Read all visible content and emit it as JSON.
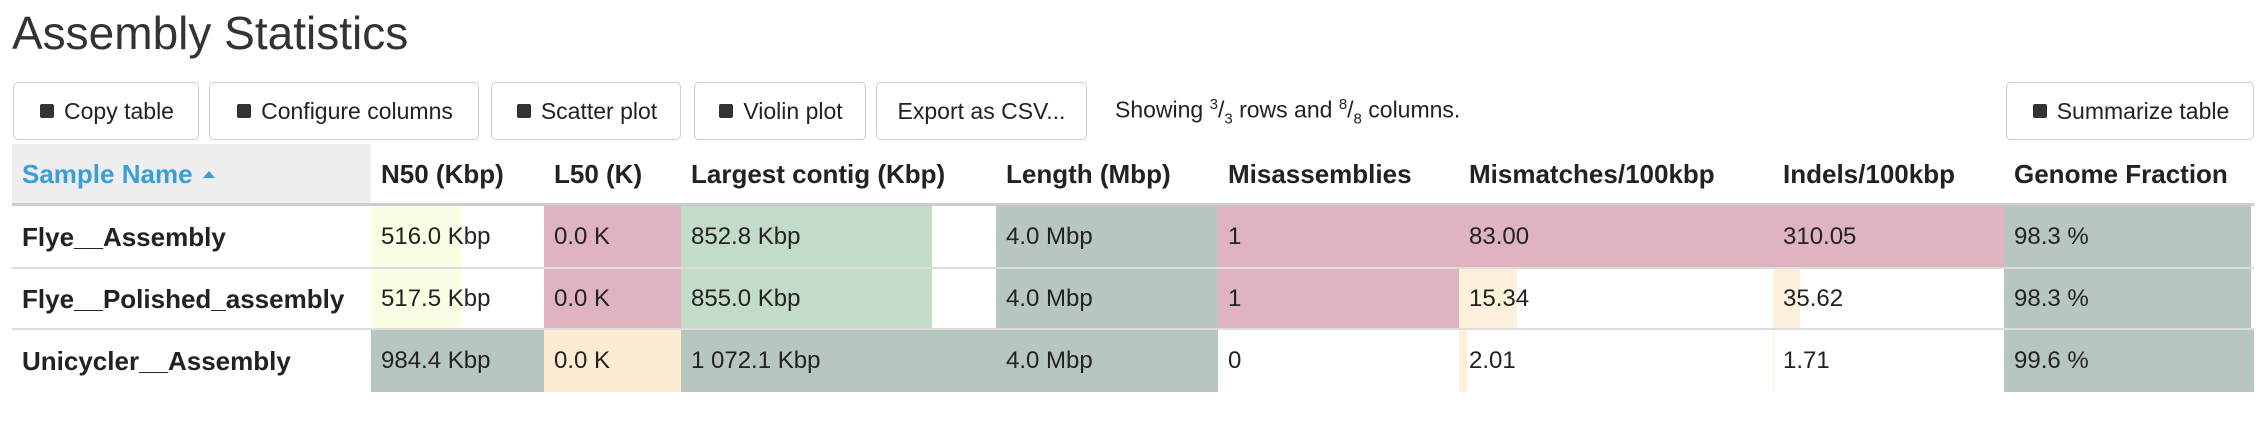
{
  "header": {
    "title": "Assembly Statistics"
  },
  "toolbar": {
    "buttons": [
      "Copy table",
      "Configure columns",
      "Scatter plot",
      "Violin plot",
      "Export as CSV..."
    ],
    "status": {
      "lead": "Showing",
      "rows_shown": "3",
      "sep": "/",
      "rows_total": "3",
      "middle": "rows and",
      "cols_shown": "8",
      "cols_total": "8",
      "end": "columns."
    },
    "summarize": "Summarize table"
  },
  "table": {
    "columns": [
      "Sample Name",
      "N50 (Kbp)",
      "L50 (K)",
      "Largest contig (Kbp)",
      "Length (Mbp)",
      "Misassemblies",
      "Mismatches/100kbp",
      "Indels/100kbp",
      "Genome Fraction"
    ],
    "rows": [
      {
        "name": "Flye__Assembly",
        "cells": [
          "516.0 Kbp",
          "0.0 K",
          "852.8 Kbp",
          "4.0 Mbp",
          "1",
          "83.00",
          "310.05",
          "98.3 %"
        ],
        "colors": [
          "#fdfde6",
          "#dfb4bf",
          "#c3dcca",
          "#b7c6bf",
          "#dfb4bf",
          "#dfb4bf",
          "#dfb4bf",
          "#b7c6bf"
        ]
      },
      {
        "name": "Flye__Polished_assembly",
        "cells": [
          "517.5 Kbp",
          "0.0 K",
          "855.0 Kbp",
          "4.0 Mbp",
          "1",
          "15.34",
          "35.62",
          "98.3 %"
        ],
        "colors": [
          "#fdfde6",
          "#dfb4bf",
          "#c3dcca",
          "#b7c6bf",
          "#dfb4bf",
          "#fdf1dc",
          "#fdf1dc",
          "#b7c6bf"
        ]
      },
      {
        "name": "Unicycler__Assembly",
        "cells": [
          "984.4 Kbp",
          "0.0 K",
          "1 072.1 Kbp",
          "4.0 Mbp",
          "0",
          "2.01",
          "1.71",
          "99.6 %"
        ],
        "colors": [
          "#b7c6bf",
          "#fdebd2",
          "#b7c6bf",
          "#b7c6bf",
          "#dfb4bf",
          "#fdf1dc",
          "#fdf1dc",
          "#b7c6bf"
        ]
      }
    ]
  }
}
